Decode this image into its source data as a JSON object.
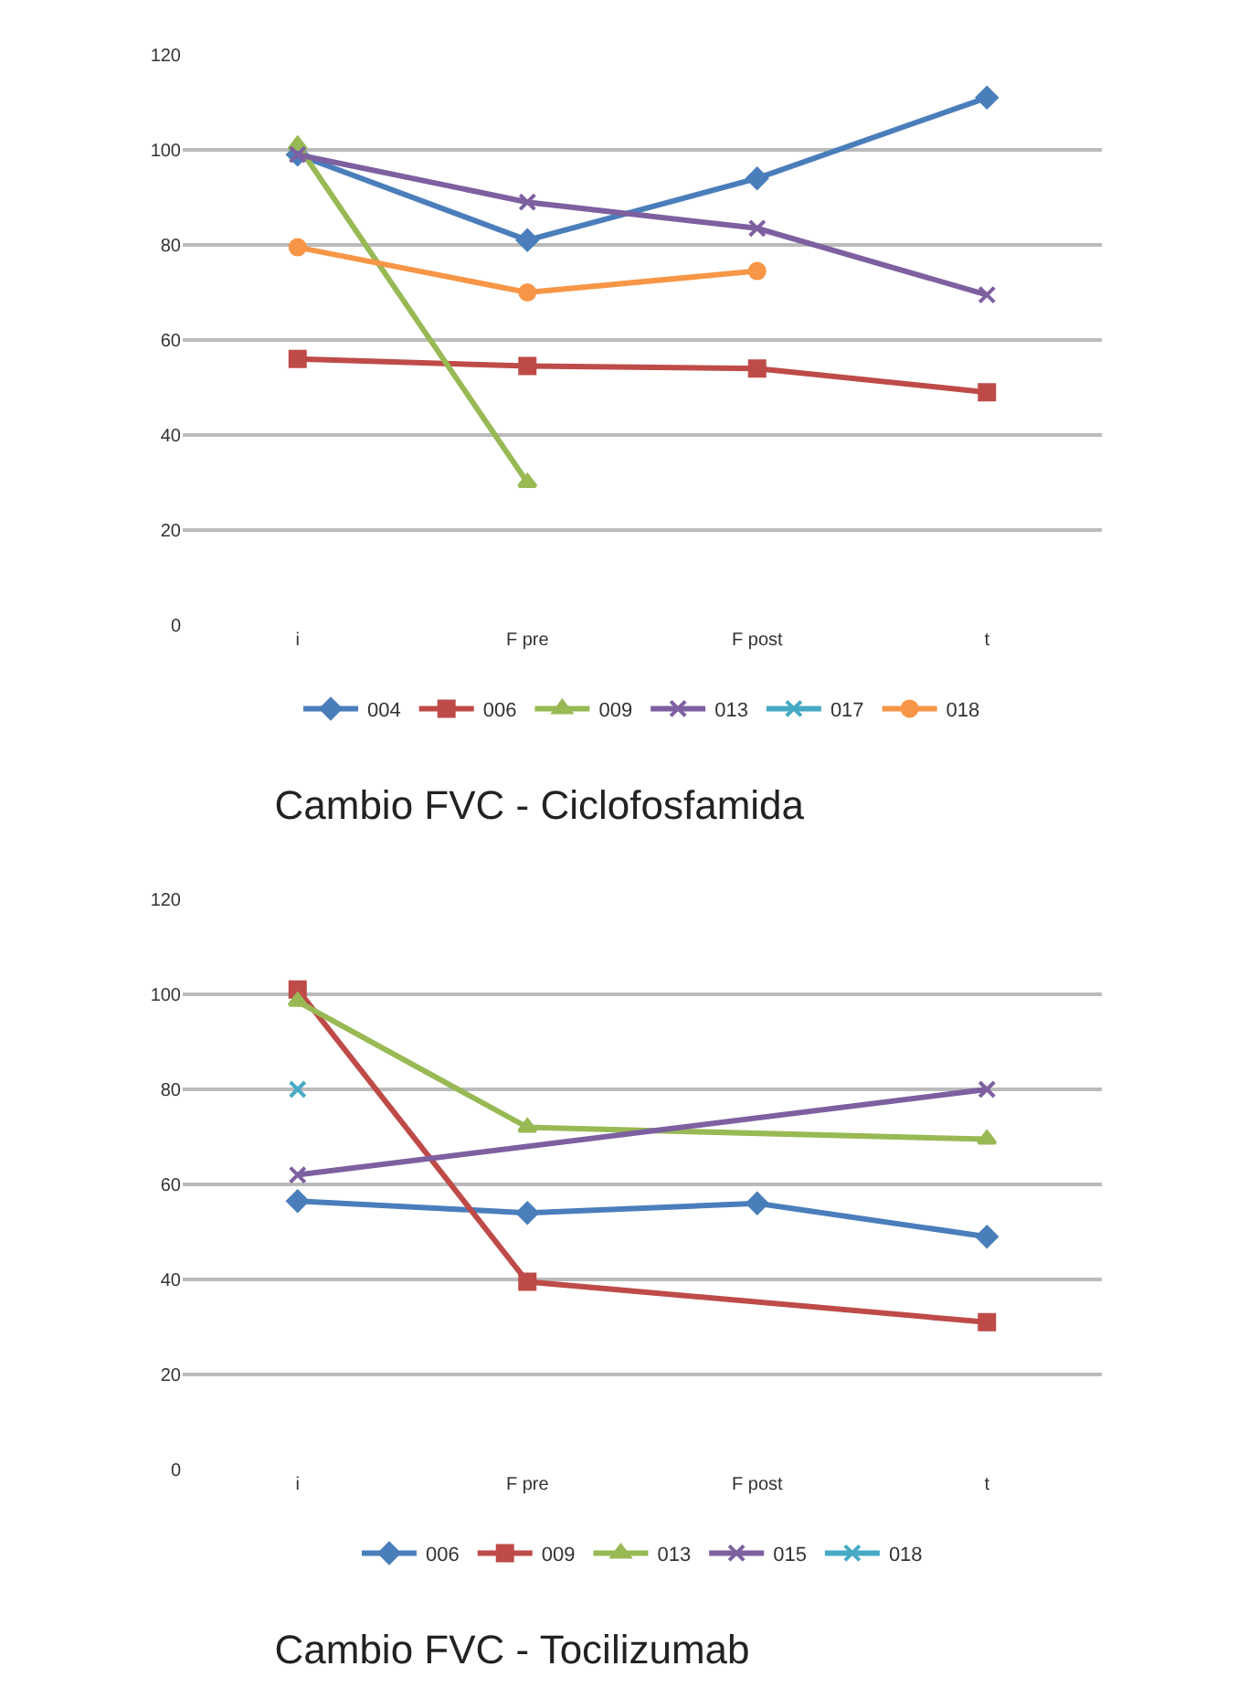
{
  "chart_data": [
    {
      "type": "line",
      "title": "Cambio FVC - Ciclofosfamida",
      "categories": [
        "i",
        "F pre",
        "F post",
        "t"
      ],
      "ylim": [
        0,
        120
      ],
      "yticks": [
        0,
        20,
        40,
        60,
        80,
        100,
        120
      ],
      "grid": "y",
      "legend": "bottom",
      "series": [
        {
          "name": "004",
          "color": "#4a7ebb",
          "marker": "diamond",
          "values": [
            99,
            81,
            94,
            111
          ]
        },
        {
          "name": "006",
          "color": "#be4b48",
          "marker": "square",
          "values": [
            56,
            54.5,
            54,
            49
          ]
        },
        {
          "name": "009",
          "color": "#98b954",
          "marker": "triangle",
          "values": [
            101,
            30,
            null,
            null
          ]
        },
        {
          "name": "013",
          "color": "#7d60a0",
          "marker": "cross",
          "values": [
            99,
            89,
            83.5,
            69.5
          ]
        },
        {
          "name": "017",
          "color": "#46aac5",
          "marker": "cross",
          "values": [
            null,
            null,
            null,
            null
          ]
        },
        {
          "name": "018",
          "color": "#f79646",
          "marker": "circle",
          "values": [
            79.5,
            70,
            74.5,
            null
          ]
        }
      ]
    },
    {
      "type": "line",
      "title": "Cambio FVC - Tocilizumab",
      "categories": [
        "i",
        "F pre",
        "F post",
        "t"
      ],
      "ylim": [
        0,
        120
      ],
      "yticks": [
        0,
        20,
        40,
        60,
        80,
        100,
        120
      ],
      "grid": "y",
      "legend": "bottom",
      "series": [
        {
          "name": "006",
          "color": "#4a7ebb",
          "marker": "diamond",
          "values": [
            56.5,
            54,
            56,
            49
          ]
        },
        {
          "name": "009",
          "color": "#be4b48",
          "marker": "square",
          "values": [
            101,
            39.5,
            null,
            31
          ]
        },
        {
          "name": "013",
          "color": "#98b954",
          "marker": "triangle",
          "values": [
            98.5,
            72,
            null,
            69.5
          ]
        },
        {
          "name": "015",
          "color": "#7d60a0",
          "marker": "cross",
          "values": [
            62,
            null,
            null,
            80
          ]
        },
        {
          "name": "018",
          "color": "#46aac5",
          "marker": "cross",
          "values": [
            80,
            null,
            null,
            null
          ]
        }
      ]
    }
  ]
}
